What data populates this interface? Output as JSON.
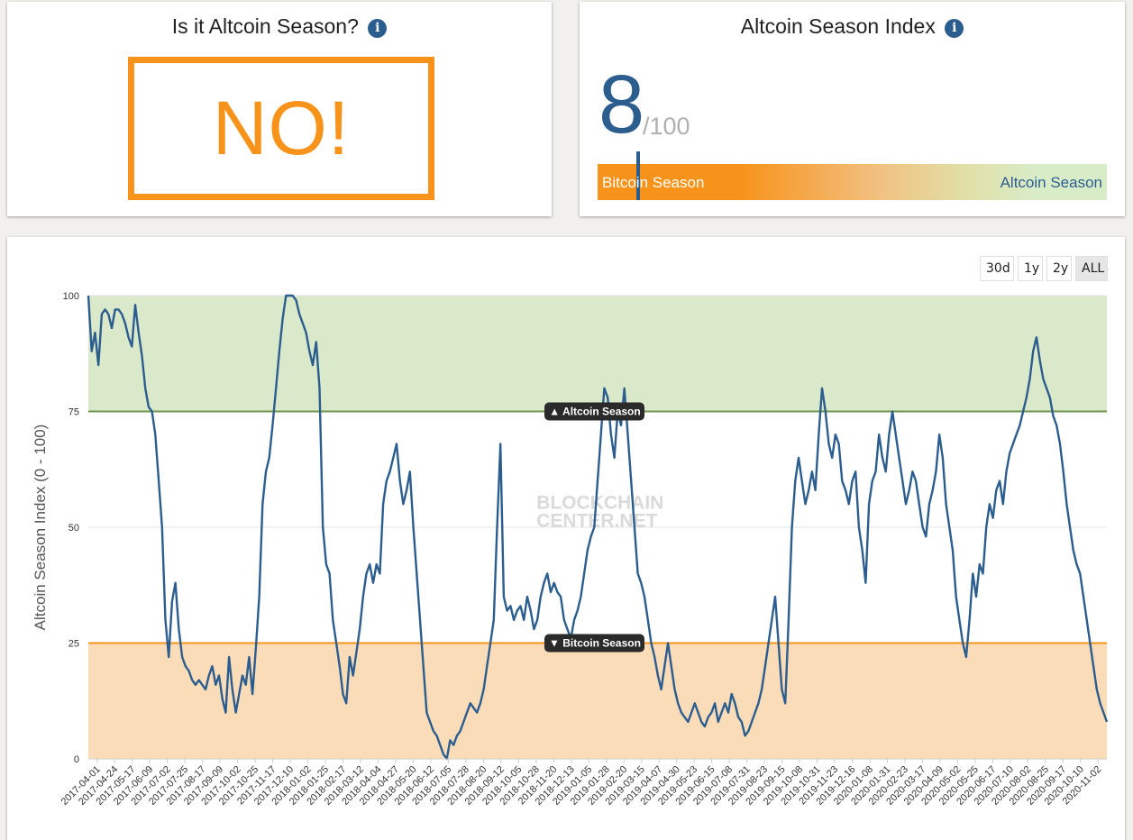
{
  "panel_question": {
    "title": "Is it Altcoin Season?",
    "answer": "NO!"
  },
  "panel_index": {
    "title": "Altcoin Season Index",
    "value": "8",
    "max": "/100",
    "bar_left_label": "Bitcoin Season",
    "bar_right_label": "Altcoin Season",
    "marker_value": 8
  },
  "info_icon_glyph": "i",
  "range_buttons": {
    "b30d": "30d",
    "b1y": "1y",
    "b2y": "2y",
    "ball": "ALL",
    "selected": "ALL"
  },
  "colors": {
    "accent_orange": "#f7931a",
    "index_blue": "#2c5d8f",
    "altcoin_zone": "#dbe9cb",
    "bitcoin_zone": "#fbdcb8",
    "altcoin_line": "#6f9650",
    "bitcoin_line": "#f7931a"
  },
  "chart_data": {
    "type": "line",
    "ylabel": "Altcoin Season Index (0 - 100)",
    "xlabel": "",
    "ylim": [
      0,
      100
    ],
    "yticks": [
      0,
      25,
      50,
      75,
      100
    ],
    "grid": "horizontal",
    "watermark": "BLOCKCHAIN CENTER.NET",
    "bands": [
      {
        "from": 75,
        "to": 100,
        "color": "#dbe9cb"
      },
      {
        "from": 0,
        "to": 25,
        "color": "#fbdcb8"
      }
    ],
    "thresholds": [
      {
        "value": 75,
        "label": "▲ Altcoin Season",
        "color": "#6f9650"
      },
      {
        "value": 25,
        "label": "▼ Bitcoin Season",
        "color": "#f7931a"
      }
    ],
    "x_tick_labels": [
      "2017-04-01",
      "2017-04-24",
      "2017-05-17",
      "2017-06-09",
      "2017-07-02",
      "2017-07-25",
      "2017-08-17",
      "2017-09-09",
      "2017-10-02",
      "2017-10-25",
      "2017-11-17",
      "2017-12-10",
      "2018-01-02",
      "2018-01-25",
      "2018-02-17",
      "2018-03-12",
      "2018-04-04",
      "2018-04-27",
      "2018-05-20",
      "2018-06-12",
      "2018-07-05",
      "2018-07-28",
      "2018-08-20",
      "2018-09-12",
      "2018-10-05",
      "2018-10-28",
      "2018-11-20",
      "2018-12-13",
      "2019-01-05",
      "2019-01-28",
      "2019-02-20",
      "2019-03-15",
      "2019-04-07",
      "2019-04-30",
      "2019-05-23",
      "2019-06-15",
      "2019-07-08",
      "2019-07-31",
      "2019-08-23",
      "2019-09-15",
      "2019-10-08",
      "2019-10-31",
      "2019-11-23",
      "2019-12-16",
      "2020-01-08",
      "2020-01-31",
      "2020-02-23",
      "2020-03-17",
      "2020-04-09",
      "2020-05-02",
      "2020-05-25",
      "2020-06-17",
      "2020-07-10",
      "2020-08-02",
      "2020-08-25",
      "2020-09-17",
      "2020-10-10",
      "2020-11-02"
    ],
    "series": [
      {
        "color": "#2c5d8f",
        "values": [
          100,
          88,
          92,
          85,
          96,
          97,
          96,
          93,
          97,
          97,
          96,
          94,
          91,
          89,
          98,
          92,
          87,
          80,
          76,
          75,
          70,
          60,
          50,
          30,
          22,
          34,
          38,
          28,
          22,
          20,
          19,
          17,
          16,
          17,
          16,
          15,
          18,
          20,
          16,
          18,
          13,
          10,
          22,
          15,
          10,
          14,
          18,
          16,
          22,
          14,
          24,
          35,
          55,
          62,
          65,
          72,
          80,
          88,
          95,
          100,
          100,
          100,
          99,
          96,
          94,
          92,
          88,
          85,
          90,
          80,
          50,
          42,
          40,
          30,
          25,
          20,
          14,
          12,
          22,
          18,
          23,
          28,
          35,
          40,
          42,
          38,
          42,
          40,
          55,
          60,
          62,
          65,
          68,
          60,
          55,
          58,
          62,
          50,
          40,
          30,
          20,
          10,
          8,
          6,
          5,
          3,
          1,
          0,
          4,
          3,
          5,
          6,
          8,
          10,
          12,
          11,
          10,
          12,
          15,
          20,
          25,
          30,
          50,
          68,
          35,
          32,
          33,
          30,
          32,
          33,
          30,
          35,
          32,
          28,
          30,
          35,
          38,
          40,
          36,
          38,
          36,
          35,
          30,
          28,
          26,
          30,
          32,
          35,
          40,
          45,
          48,
          50,
          60,
          70,
          80,
          78,
          70,
          65,
          75,
          72,
          80,
          70,
          60,
          50,
          40,
          38,
          35,
          30,
          25,
          22,
          18,
          15,
          20,
          25,
          20,
          15,
          12,
          10,
          9,
          8,
          10,
          12,
          10,
          8,
          7,
          9,
          10,
          12,
          8,
          10,
          12,
          10,
          14,
          12,
          9,
          8,
          5,
          6,
          8,
          10,
          12,
          15,
          20,
          25,
          30,
          35,
          25,
          15,
          12,
          30,
          50,
          60,
          65,
          60,
          55,
          58,
          62,
          58,
          70,
          80,
          75,
          68,
          65,
          70,
          68,
          60,
          58,
          55,
          60,
          62,
          50,
          45,
          38,
          55,
          60,
          62,
          70,
          65,
          62,
          70,
          75,
          70,
          65,
          60,
          55,
          58,
          62,
          60,
          55,
          50,
          48,
          55,
          58,
          62,
          70,
          65,
          55,
          50,
          45,
          35,
          30,
          25,
          22,
          30,
          40,
          35,
          42,
          40,
          50,
          55,
          52,
          58,
          60,
          55,
          62,
          66,
          68,
          70,
          72,
          75,
          78,
          82,
          88,
          91,
          86,
          82,
          80,
          78,
          74,
          72,
          68,
          62,
          55,
          50,
          45,
          42,
          40,
          35,
          30,
          25,
          20,
          15,
          12,
          10,
          8
        ]
      }
    ]
  }
}
